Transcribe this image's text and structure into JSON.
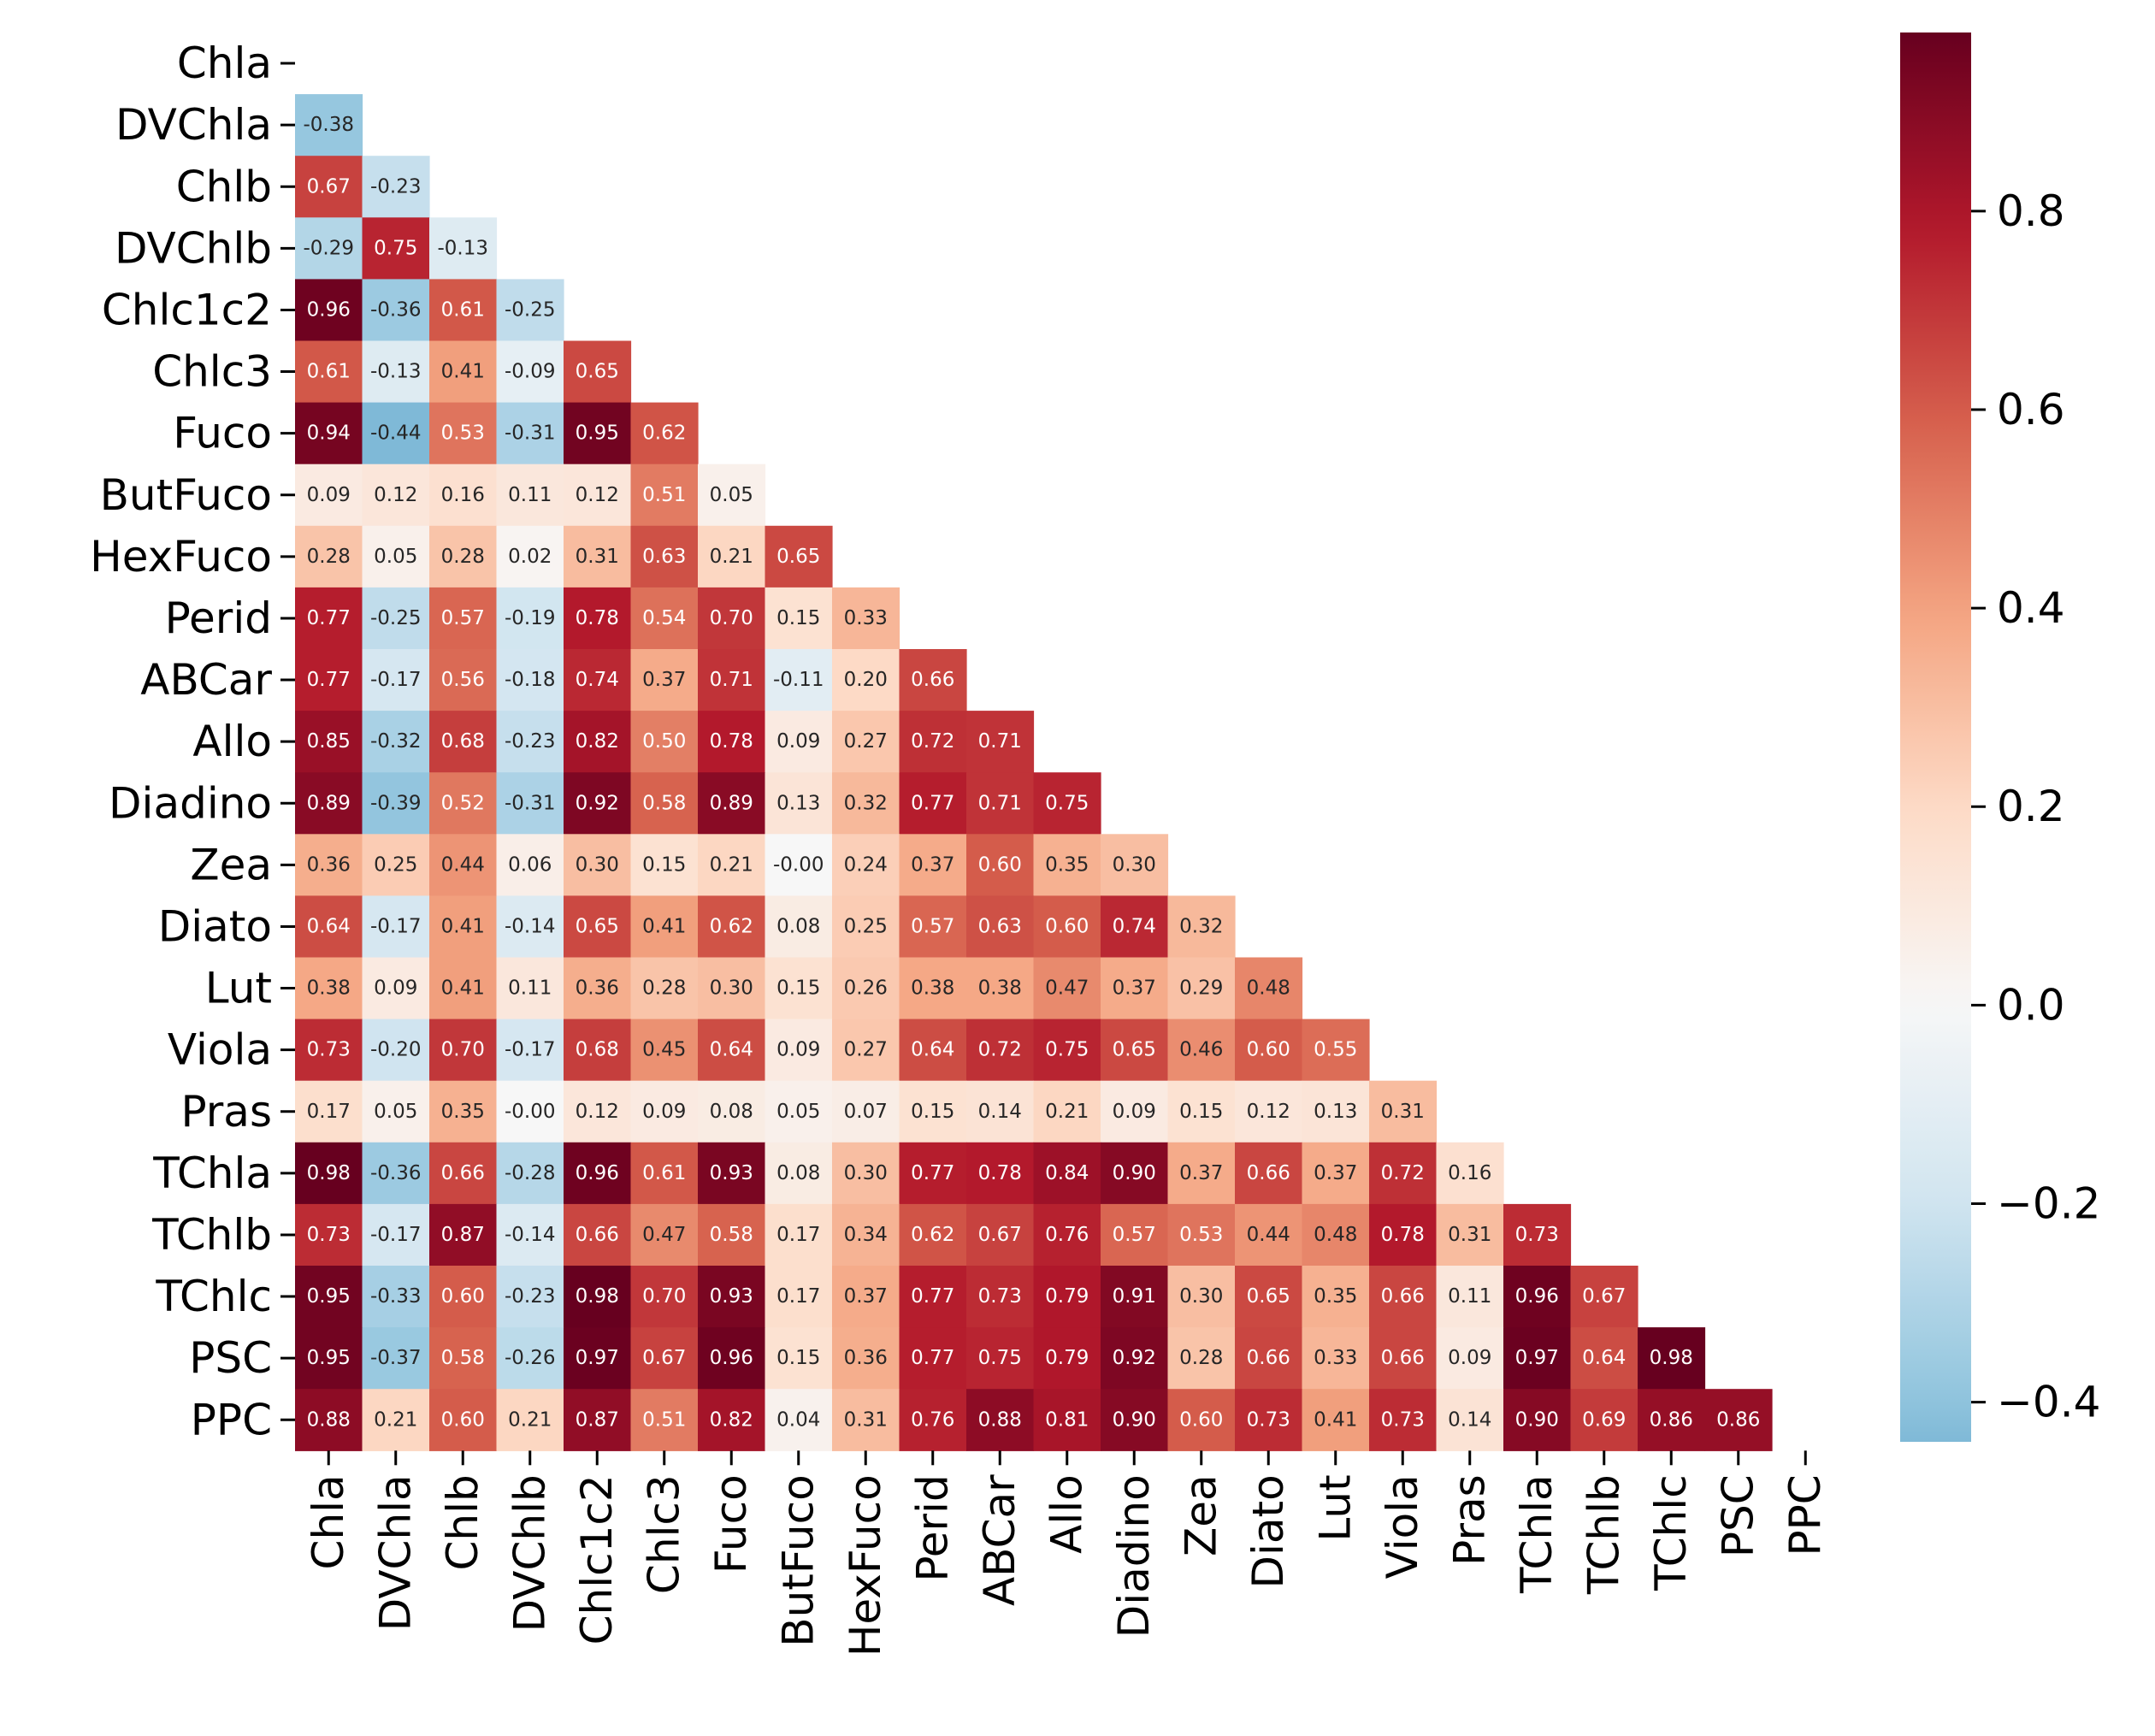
{
  "chart_data": {
    "type": "heatmap",
    "title": "",
    "xlabel": "",
    "ylabel": "",
    "variables": [
      "Chla",
      "DVChla",
      "Chlb",
      "DVChlb",
      "Chlc1c2",
      "Chlc3",
      "Fuco",
      "ButFuco",
      "HexFuco",
      "Perid",
      "ABCar",
      "Allo",
      "Diadino",
      "Zea",
      "Diato",
      "Lut",
      "Viola",
      "Pras",
      "TChla",
      "TChlb",
      "TChlc",
      "PSC",
      "PPC"
    ],
    "masked": "upper-triangle-and-diagonal",
    "lower_triangle": [
      [],
      [
        "-0.38"
      ],
      [
        "0.67",
        "-0.23"
      ],
      [
        "-0.29",
        "0.75",
        "-0.13"
      ],
      [
        "0.96",
        "-0.36",
        "0.61",
        "-0.25"
      ],
      [
        "0.61",
        "-0.13",
        "0.41",
        "-0.09",
        "0.65"
      ],
      [
        "0.94",
        "-0.44",
        "0.53",
        "-0.31",
        "0.95",
        "0.62"
      ],
      [
        "0.09",
        "0.12",
        "0.16",
        "0.11",
        "0.12",
        "0.51",
        "0.05"
      ],
      [
        "0.28",
        "0.05",
        "0.28",
        "0.02",
        "0.31",
        "0.63",
        "0.21",
        "0.65"
      ],
      [
        "0.77",
        "-0.25",
        "0.57",
        "-0.19",
        "0.78",
        "0.54",
        "0.70",
        "0.15",
        "0.33"
      ],
      [
        "0.77",
        "-0.17",
        "0.56",
        "-0.18",
        "0.74",
        "0.37",
        "0.71",
        "-0.11",
        "0.20",
        "0.66"
      ],
      [
        "0.85",
        "-0.32",
        "0.68",
        "-0.23",
        "0.82",
        "0.50",
        "0.78",
        "0.09",
        "0.27",
        "0.72",
        "0.71"
      ],
      [
        "0.89",
        "-0.39",
        "0.52",
        "-0.31",
        "0.92",
        "0.58",
        "0.89",
        "0.13",
        "0.32",
        "0.77",
        "0.71",
        "0.75"
      ],
      [
        "0.36",
        "0.25",
        "0.44",
        "0.06",
        "0.30",
        "0.15",
        "0.21",
        "-0.00",
        "0.24",
        "0.37",
        "0.60",
        "0.35",
        "0.30"
      ],
      [
        "0.64",
        "-0.17",
        "0.41",
        "-0.14",
        "0.65",
        "0.41",
        "0.62",
        "0.08",
        "0.25",
        "0.57",
        "0.63",
        "0.60",
        "0.74",
        "0.32"
      ],
      [
        "0.38",
        "0.09",
        "0.41",
        "0.11",
        "0.36",
        "0.28",
        "0.30",
        "0.15",
        "0.26",
        "0.38",
        "0.38",
        "0.47",
        "0.37",
        "0.29",
        "0.48"
      ],
      [
        "0.73",
        "-0.20",
        "0.70",
        "-0.17",
        "0.68",
        "0.45",
        "0.64",
        "0.09",
        "0.27",
        "0.64",
        "0.72",
        "0.75",
        "0.65",
        "0.46",
        "0.60",
        "0.55"
      ],
      [
        "0.17",
        "0.05",
        "0.35",
        "-0.00",
        "0.12",
        "0.09",
        "0.08",
        "0.05",
        "0.07",
        "0.15",
        "0.14",
        "0.21",
        "0.09",
        "0.15",
        "0.12",
        "0.13",
        "0.31"
      ],
      [
        "0.98",
        "-0.36",
        "0.66",
        "-0.28",
        "0.96",
        "0.61",
        "0.93",
        "0.08",
        "0.30",
        "0.77",
        "0.78",
        "0.84",
        "0.90",
        "0.37",
        "0.66",
        "0.37",
        "0.72",
        "0.16"
      ],
      [
        "0.73",
        "-0.17",
        "0.87",
        "-0.14",
        "0.66",
        "0.47",
        "0.58",
        "0.17",
        "0.34",
        "0.62",
        "0.67",
        "0.76",
        "0.57",
        "0.53",
        "0.44",
        "0.48",
        "0.78",
        "0.31",
        "0.73"
      ],
      [
        "0.95",
        "-0.33",
        "0.60",
        "-0.23",
        "0.98",
        "0.70",
        "0.93",
        "0.17",
        "0.37",
        "0.77",
        "0.73",
        "0.79",
        "0.91",
        "0.30",
        "0.65",
        "0.35",
        "0.66",
        "0.11",
        "0.96",
        "0.67"
      ],
      [
        "0.95",
        "-0.37",
        "0.58",
        "-0.26",
        "0.97",
        "0.67",
        "0.96",
        "0.15",
        "0.36",
        "0.77",
        "0.75",
        "0.79",
        "0.92",
        "0.28",
        "0.66",
        "0.33",
        "0.66",
        "0.09",
        "0.97",
        "0.64",
        "0.98"
      ],
      [
        "0.88",
        "0.21",
        "0.60",
        "0.21",
        "0.87",
        "0.51",
        "0.82",
        "0.04",
        "0.31",
        "0.76",
        "0.88",
        "0.81",
        "0.90",
        "0.60",
        "0.73",
        "0.41",
        "0.73",
        "0.14",
        "0.90",
        "0.69",
        "0.86",
        "0.86"
      ]
    ],
    "colorbar": {
      "vmin": -0.44,
      "vmax": 0.98,
      "center": 0.0,
      "colormap": "RdBu_r",
      "ticks": [
        "−0.4",
        "−0.2",
        "0.0",
        "0.2",
        "0.4",
        "0.6",
        "0.8"
      ],
      "tick_values": [
        -0.4,
        -0.2,
        0.0,
        0.2,
        0.4,
        0.6,
        0.8
      ]
    }
  }
}
